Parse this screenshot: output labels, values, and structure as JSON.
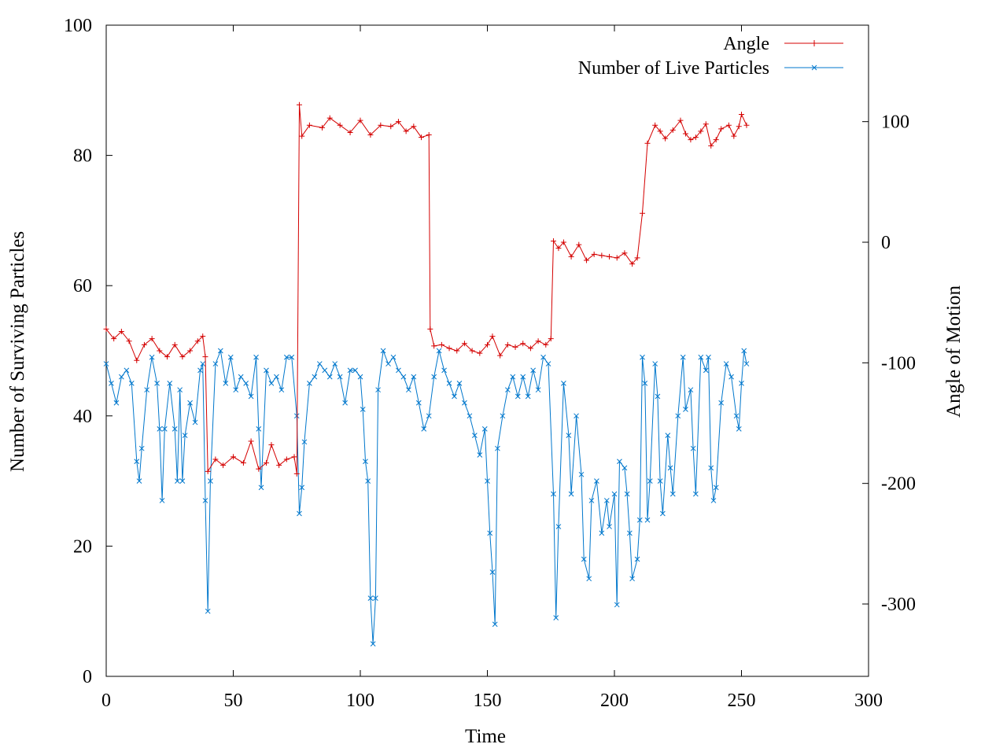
{
  "chart_data": {
    "type": "line",
    "title": "",
    "xlabel": "Time",
    "ylabel": "Number of Surviving Particles",
    "y2label": "Angle of Motion",
    "xlim": [
      0,
      300
    ],
    "ylim": [
      0,
      100
    ],
    "y2lim": [
      -360,
      180
    ],
    "xticks": [
      "0",
      "50",
      "100",
      "150",
      "200",
      "250",
      "300"
    ],
    "yticks": [
      "0",
      "20",
      "40",
      "60",
      "80",
      "100"
    ],
    "y2ticks": [
      "-300",
      "-200",
      "-100",
      "0",
      "100"
    ],
    "grid": false,
    "legend_position": "top-right",
    "series": [
      {
        "name": "Angle",
        "axis": "y2",
        "color": "#d40000",
        "marker": "plus",
        "points": [
          [
            0,
            -72
          ],
          [
            3,
            -80
          ],
          [
            6,
            -74
          ],
          [
            9,
            -82
          ],
          [
            12,
            -98
          ],
          [
            15,
            -85
          ],
          [
            18,
            -80
          ],
          [
            21,
            -90
          ],
          [
            24,
            -95
          ],
          [
            27,
            -85
          ],
          [
            30,
            -95
          ],
          [
            33,
            -90
          ],
          [
            36,
            -82
          ],
          [
            38,
            -78
          ],
          [
            39,
            -95
          ],
          [
            40,
            -190
          ],
          [
            43,
            -180
          ],
          [
            46,
            -185
          ],
          [
            50,
            -178
          ],
          [
            54,
            -183
          ],
          [
            57,
            -165
          ],
          [
            60,
            -188
          ],
          [
            63,
            -183
          ],
          [
            65,
            -168
          ],
          [
            68,
            -185
          ],
          [
            71,
            -180
          ],
          [
            74,
            -178
          ],
          [
            75,
            -192
          ],
          [
            76,
            114
          ],
          [
            77,
            88
          ],
          [
            80,
            97
          ],
          [
            85,
            95
          ],
          [
            88,
            103
          ],
          [
            92,
            97
          ],
          [
            96,
            91
          ],
          [
            100,
            101
          ],
          [
            104,
            89
          ],
          [
            108,
            97
          ],
          [
            112,
            96
          ],
          [
            115,
            100
          ],
          [
            118,
            92
          ],
          [
            121,
            96
          ],
          [
            124,
            87
          ],
          [
            127,
            89
          ],
          [
            127.5,
            -72
          ],
          [
            129,
            -86
          ],
          [
            132,
            -85
          ],
          [
            135,
            -88
          ],
          [
            138,
            -90
          ],
          [
            141,
            -84
          ],
          [
            144,
            -90
          ],
          [
            147,
            -92
          ],
          [
            150,
            -85
          ],
          [
            152,
            -78
          ],
          [
            155,
            -94
          ],
          [
            158,
            -85
          ],
          [
            161,
            -87
          ],
          [
            164,
            -84
          ],
          [
            167,
            -88
          ],
          [
            170,
            -82
          ],
          [
            173,
            -85
          ],
          [
            175,
            -80
          ],
          [
            176,
            1
          ],
          [
            178,
            -5
          ],
          [
            180,
            0
          ],
          [
            183,
            -12
          ],
          [
            186,
            -2
          ],
          [
            189,
            -15
          ],
          [
            192,
            -10
          ],
          [
            195,
            -11
          ],
          [
            198,
            -12
          ],
          [
            201,
            -13
          ],
          [
            204,
            -9
          ],
          [
            207,
            -18
          ],
          [
            209,
            -13
          ],
          [
            211,
            24
          ],
          [
            213,
            82
          ],
          [
            216,
            97
          ],
          [
            218,
            92
          ],
          [
            220,
            86
          ],
          [
            223,
            93
          ],
          [
            226,
            101
          ],
          [
            228,
            90
          ],
          [
            230,
            85
          ],
          [
            232,
            87
          ],
          [
            234,
            92
          ],
          [
            236,
            98
          ],
          [
            238,
            80
          ],
          [
            240,
            85
          ],
          [
            242,
            94
          ],
          [
            245,
            97
          ],
          [
            247,
            88
          ],
          [
            249,
            96
          ],
          [
            250,
            106
          ],
          [
            252,
            97
          ]
        ]
      },
      {
        "name": "Number of Live Particles",
        "axis": "y",
        "color": "#0077cc",
        "marker": "x",
        "points": [
          [
            0,
            48
          ],
          [
            2,
            45
          ],
          [
            4,
            42
          ],
          [
            6,
            46
          ],
          [
            8,
            47
          ],
          [
            10,
            45
          ],
          [
            12,
            33
          ],
          [
            13,
            30
          ],
          [
            14,
            35
          ],
          [
            16,
            44
          ],
          [
            18,
            49
          ],
          [
            20,
            45
          ],
          [
            21,
            38
          ],
          [
            22,
            27
          ],
          [
            23,
            38
          ],
          [
            25,
            45
          ],
          [
            27,
            38
          ],
          [
            28,
            30
          ],
          [
            29,
            44
          ],
          [
            30,
            30
          ],
          [
            31,
            37
          ],
          [
            33,
            42
          ],
          [
            35,
            39
          ],
          [
            37,
            47
          ],
          [
            38,
            48
          ],
          [
            39,
            27
          ],
          [
            40,
            10
          ],
          [
            41,
            30
          ],
          [
            43,
            48
          ],
          [
            45,
            50
          ],
          [
            47,
            45
          ],
          [
            49,
            49
          ],
          [
            51,
            44
          ],
          [
            53,
            46
          ],
          [
            55,
            45
          ],
          [
            57,
            43
          ],
          [
            59,
            49
          ],
          [
            60,
            38
          ],
          [
            61,
            29
          ],
          [
            63,
            47
          ],
          [
            65,
            45
          ],
          [
            67,
            46
          ],
          [
            69,
            44
          ],
          [
            71,
            49
          ],
          [
            73,
            49
          ],
          [
            75,
            40
          ],
          [
            76,
            25
          ],
          [
            77,
            29
          ],
          [
            78,
            36
          ],
          [
            80,
            45
          ],
          [
            82,
            46
          ],
          [
            84,
            48
          ],
          [
            86,
            47
          ],
          [
            88,
            46
          ],
          [
            90,
            48
          ],
          [
            92,
            46
          ],
          [
            94,
            42
          ],
          [
            96,
            47
          ],
          [
            98,
            47
          ],
          [
            100,
            46
          ],
          [
            101,
            41
          ],
          [
            102,
            33
          ],
          [
            103,
            30
          ],
          [
            104,
            12
          ],
          [
            105,
            5
          ],
          [
            106,
            12
          ],
          [
            107,
            44
          ],
          [
            109,
            50
          ],
          [
            111,
            48
          ],
          [
            113,
            49
          ],
          [
            115,
            47
          ],
          [
            117,
            46
          ],
          [
            119,
            44
          ],
          [
            121,
            46
          ],
          [
            123,
            42
          ],
          [
            125,
            38
          ],
          [
            127,
            40
          ],
          [
            129,
            46
          ],
          [
            131,
            50
          ],
          [
            133,
            47
          ],
          [
            135,
            45
          ],
          [
            137,
            43
          ],
          [
            139,
            45
          ],
          [
            141,
            42
          ],
          [
            143,
            40
          ],
          [
            145,
            37
          ],
          [
            147,
            34
          ],
          [
            149,
            38
          ],
          [
            150,
            30
          ],
          [
            151,
            22
          ],
          [
            152,
            16
          ],
          [
            153,
            8
          ],
          [
            154,
            35
          ],
          [
            156,
            40
          ],
          [
            158,
            44
          ],
          [
            160,
            46
          ],
          [
            162,
            43
          ],
          [
            164,
            46
          ],
          [
            166,
            43
          ],
          [
            168,
            47
          ],
          [
            170,
            44
          ],
          [
            172,
            49
          ],
          [
            174,
            48
          ],
          [
            176,
            28
          ],
          [
            177,
            9
          ],
          [
            178,
            23
          ],
          [
            180,
            45
          ],
          [
            182,
            37
          ],
          [
            183,
            28
          ],
          [
            185,
            40
          ],
          [
            187,
            31
          ],
          [
            188,
            18
          ],
          [
            190,
            15
          ],
          [
            191,
            27
          ],
          [
            193,
            30
          ],
          [
            195,
            22
          ],
          [
            197,
            27
          ],
          [
            198,
            23
          ],
          [
            200,
            28
          ],
          [
            201,
            11
          ],
          [
            202,
            33
          ],
          [
            204,
            32
          ],
          [
            205,
            28
          ],
          [
            206,
            22
          ],
          [
            207,
            15
          ],
          [
            209,
            18
          ],
          [
            210,
            24
          ],
          [
            211,
            49
          ],
          [
            212,
            45
          ],
          [
            213,
            24
          ],
          [
            214,
            30
          ],
          [
            216,
            48
          ],
          [
            217,
            43
          ],
          [
            218,
            30
          ],
          [
            219,
            25
          ],
          [
            221,
            37
          ],
          [
            222,
            32
          ],
          [
            223,
            28
          ],
          [
            225,
            40
          ],
          [
            227,
            49
          ],
          [
            228,
            41
          ],
          [
            230,
            44
          ],
          [
            231,
            35
          ],
          [
            232,
            28
          ],
          [
            234,
            49
          ],
          [
            236,
            47
          ],
          [
            237,
            49
          ],
          [
            238,
            32
          ],
          [
            239,
            27
          ],
          [
            240,
            29
          ],
          [
            242,
            42
          ],
          [
            244,
            48
          ],
          [
            246,
            46
          ],
          [
            248,
            40
          ],
          [
            249,
            38
          ],
          [
            250,
            45
          ],
          [
            251,
            50
          ],
          [
            252,
            48
          ]
        ]
      }
    ]
  }
}
